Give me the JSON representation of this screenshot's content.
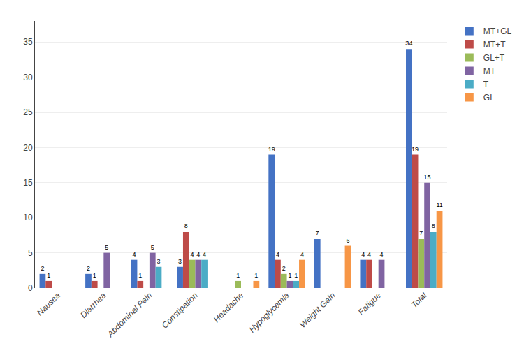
{
  "chart_data": {
    "type": "bar",
    "categories": [
      "Nausea",
      "Diarrhea",
      "Abdominal Pain",
      "Constipation",
      "Headache",
      "Hypoglycemia",
      "Weight Gain",
      "Fatigue",
      "Total"
    ],
    "series": [
      {
        "name": "MT+GL",
        "color": "#4472C4",
        "values": [
          2,
          2,
          4,
          3,
          0,
          19,
          7,
          4,
          34
        ],
        "value_labels": [
          "2",
          "2",
          "4",
          "3",
          null,
          "19",
          "7",
          "4",
          "34"
        ]
      },
      {
        "name": "MT+T",
        "color": "#BE4B48",
        "values": [
          1,
          1,
          1,
          8,
          0,
          4,
          0,
          4,
          19
        ],
        "value_labels": [
          "1",
          "1",
          "1",
          "8",
          null,
          "4",
          null,
          "4",
          "19"
        ]
      },
      {
        "name": "GL+T",
        "color": "#9BBB59",
        "values": [
          0,
          0,
          0,
          4,
          1,
          2,
          0,
          0,
          7
        ],
        "value_labels": [
          null,
          null,
          null,
          "4",
          "1",
          "2",
          null,
          null,
          "7"
        ]
      },
      {
        "name": "MT",
        "color": "#8064A2",
        "values": [
          0,
          5,
          5,
          4,
          0,
          1,
          0,
          4,
          15
        ],
        "value_labels": [
          null,
          "5",
          "5",
          "4",
          null,
          "1",
          null,
          "4",
          "15"
        ]
      },
      {
        "name": "T",
        "color": "#4BACC6",
        "values": [
          0,
          0,
          3,
          4,
          0,
          1,
          0,
          0,
          8
        ],
        "value_labels": [
          null,
          null,
          "3",
          "4",
          null,
          "1",
          null,
          null,
          "8"
        ]
      },
      {
        "name": "GL",
        "color": "#F79646",
        "values": [
          0,
          0,
          0,
          0,
          1,
          4,
          6,
          0,
          11
        ],
        "value_labels": [
          null,
          null,
          null,
          null,
          "1",
          "4",
          "6",
          null,
          "11"
        ]
      }
    ],
    "ylim": [
      0,
      38
    ],
    "yticks": [
      0,
      5,
      10,
      15,
      20,
      25,
      30,
      35
    ],
    "grid": true,
    "legend": "upper right",
    "data_labels": true
  }
}
